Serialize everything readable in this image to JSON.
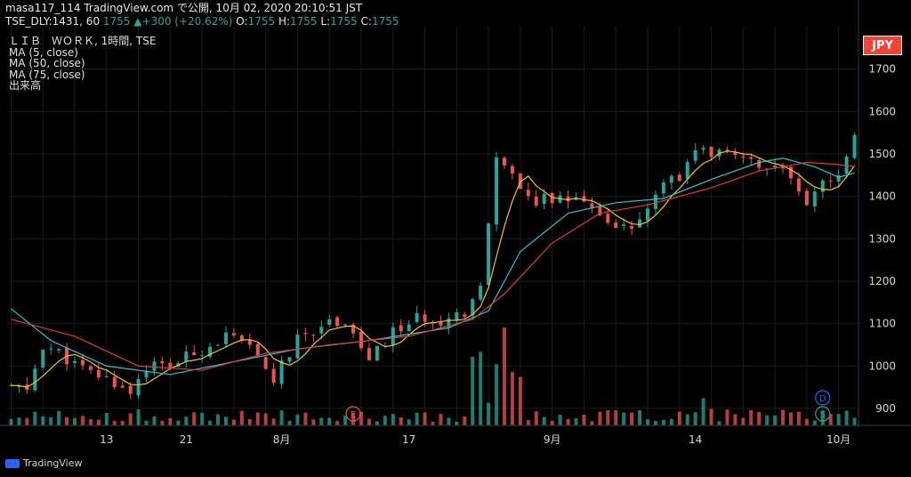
{
  "header": {
    "line1": "masa117_114 TradingView.com で公開, 10月 02, 2020 20:10:51 JST",
    "line2_prefix": "TSE_DLY:1431, 60",
    "last": "1755",
    "change": "▲+300 (+20.62%)",
    "ohlc_o": "1755",
    "ohlc_h": "1755",
    "ohlc_l": "1755",
    "ohlc_c": "1755",
    "o_label": "O:",
    "h_label": "H:",
    "l_label": "L:",
    "c_label": "C:"
  },
  "legend": {
    "symbol": "ＬＩＢ　ＷＯＲＫ, 1時間, TSE",
    "ma5": "MA (5, close)",
    "ma50": "MA (50, close)",
    "ma75": "MA (75, close)",
    "volume": "出来高"
  },
  "currency": "JPY",
  "brand": "TradingView",
  "colors": {
    "up": "#26a69a",
    "down": "#ef5350",
    "ma5": "#f5c518",
    "ma50": "#26c6da",
    "ma75": "#e53935",
    "grid": "#1c1c1c",
    "axis_text": "#d1d4dc",
    "marker_e": "#ef5350",
    "marker_d": "#2962ff",
    "marker_s": "#26a69a"
  },
  "chart_data": {
    "type": "candlestick",
    "ylim": [
      860,
      1800
    ],
    "y_ticks": [
      "900",
      "1000",
      "1100",
      "1200",
      "1300",
      "1400",
      "1500",
      "1600",
      "1700"
    ],
    "x_ticks": [
      "13",
      "21",
      "8月",
      "17",
      "9月",
      "14",
      "10月"
    ],
    "x_tick_index": [
      12,
      22,
      34,
      50,
      68,
      86,
      104
    ],
    "anchors_price": [
      [
        0,
        950
      ],
      [
        2,
        940
      ],
      [
        4,
        1050
      ],
      [
        6,
        1030
      ],
      [
        9,
        990
      ],
      [
        12,
        970
      ],
      [
        15,
        940
      ],
      [
        17,
        1000
      ],
      [
        20,
        1000
      ],
      [
        24,
        1040
      ],
      [
        27,
        1070
      ],
      [
        30,
        1040
      ],
      [
        33,
        970
      ],
      [
        36,
        1060
      ],
      [
        39,
        1100
      ],
      [
        42,
        1110
      ],
      [
        45,
        1010
      ],
      [
        48,
        1080
      ],
      [
        51,
        1110
      ],
      [
        54,
        1110
      ],
      [
        57,
        1130
      ],
      [
        59,
        1190
      ],
      [
        61,
        1480
      ],
      [
        63,
        1440
      ],
      [
        66,
        1390
      ],
      [
        69,
        1400
      ],
      [
        72,
        1380
      ],
      [
        75,
        1330
      ],
      [
        78,
        1320
      ],
      [
        80,
        1380
      ],
      [
        82,
        1430
      ],
      [
        84,
        1440
      ],
      [
        86,
        1510
      ],
      [
        88,
        1490
      ],
      [
        90,
        1520
      ],
      [
        92,
        1500
      ],
      [
        94,
        1480
      ],
      [
        96,
        1470
      ],
      [
        98,
        1440
      ],
      [
        100,
        1380
      ],
      [
        102,
        1440
      ],
      [
        104,
        1460
      ],
      [
        106,
        1540
      ]
    ],
    "ma50_points": [
      [
        0,
        1135
      ],
      [
        5,
        1060
      ],
      [
        12,
        1000
      ],
      [
        20,
        980
      ],
      [
        28,
        1010
      ],
      [
        36,
        1040
      ],
      [
        45,
        1060
      ],
      [
        55,
        1090
      ],
      [
        60,
        1130
      ],
      [
        64,
        1270
      ],
      [
        70,
        1360
      ],
      [
        76,
        1385
      ],
      [
        82,
        1395
      ],
      [
        88,
        1440
      ],
      [
        94,
        1480
      ],
      [
        97,
        1490
      ],
      [
        101,
        1470
      ],
      [
        104,
        1445
      ],
      [
        106,
        1455
      ]
    ],
    "ma75_points": [
      [
        0,
        1110
      ],
      [
        8,
        1070
      ],
      [
        16,
        1000
      ],
      [
        24,
        990
      ],
      [
        32,
        1030
      ],
      [
        40,
        1050
      ],
      [
        50,
        1070
      ],
      [
        58,
        1110
      ],
      [
        62,
        1170
      ],
      [
        68,
        1290
      ],
      [
        74,
        1360
      ],
      [
        80,
        1380
      ],
      [
        88,
        1420
      ],
      [
        94,
        1460
      ],
      [
        100,
        1480
      ],
      [
        104,
        1475
      ],
      [
        106,
        1470
      ]
    ],
    "markers": [
      {
        "label": "E",
        "index": 43
      },
      {
        "label": "D",
        "index": 102
      },
      {
        "label": "S",
        "index": 102
      }
    ]
  }
}
